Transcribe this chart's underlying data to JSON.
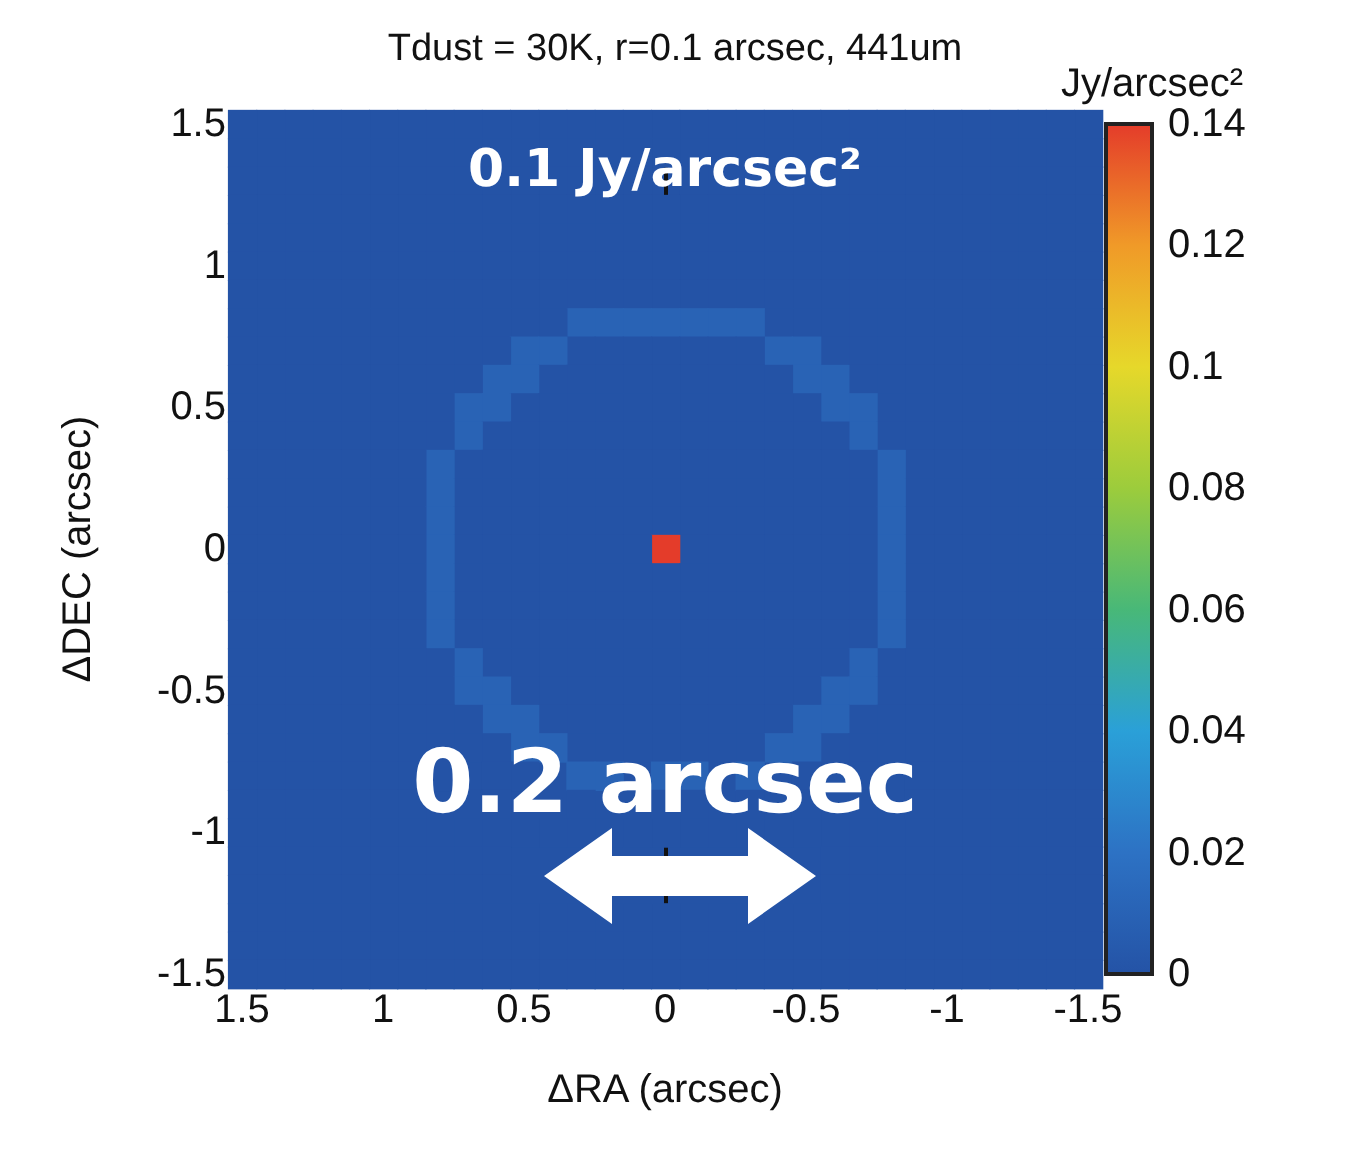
{
  "chart_data": {
    "type": "heatmap",
    "title": "Tdust = 30K, r=0.1 arcsec, 441um",
    "xlabel": "ΔRA (arcsec)",
    "ylabel": "ΔDEC (arcsec)",
    "clabel": "Jy/arcsec²",
    "annotations": [
      "0.1 Jy/arcsec²",
      "0.2 arcsec"
    ],
    "x": [
      -1.5,
      -1.4,
      -1.3,
      -1.2,
      -1.1,
      -1,
      -0.9,
      -0.8,
      -0.7,
      -0.6,
      -0.5,
      -0.4,
      -0.3,
      -0.2,
      -0.1,
      0,
      0.1,
      0.2,
      0.3,
      0.4,
      0.5,
      0.6,
      0.7,
      0.8,
      0.9,
      1,
      1.1,
      1.2,
      1.3,
      1.4,
      1.5
    ],
    "y": [
      1.5,
      1.4,
      1.3,
      1.2,
      1.1,
      1,
      0.9,
      0.8,
      0.7,
      0.6,
      0.5,
      0.4,
      0.3,
      0.2,
      0.1,
      0,
      -0.1,
      -0.2,
      -0.3,
      -0.4,
      -0.5,
      -0.6,
      -0.7,
      -0.8,
      -0.9,
      -1,
      -1.1,
      -1.2,
      -1.3,
      -1.4,
      -1.5
    ],
    "cells": [
      [
        0,
        0,
        0,
        0,
        0,
        0,
        0,
        0,
        0,
        0,
        0,
        0,
        0,
        0,
        0,
        0,
        0,
        0,
        0,
        0,
        0,
        0,
        0,
        0,
        0,
        0,
        0,
        0,
        0,
        0,
        0
      ],
      [
        0,
        0,
        0,
        0,
        0,
        0,
        0,
        0,
        0,
        0,
        0,
        0,
        0,
        0,
        0,
        0,
        0,
        0,
        0,
        0,
        0,
        0,
        0,
        0,
        0,
        0,
        0,
        0,
        0,
        0,
        0
      ],
      [
        0,
        0,
        0,
        0,
        0,
        0,
        0,
        0,
        0,
        0,
        0,
        0,
        0,
        0,
        0,
        null,
        0,
        0,
        0,
        0,
        0,
        0,
        0,
        0,
        0,
        0,
        0,
        0,
        0,
        0,
        0
      ],
      [
        0,
        0,
        0,
        0,
        0,
        0,
        0,
        0,
        0,
        0,
        0,
        0,
        0,
        0,
        0,
        0,
        0,
        0,
        0,
        0,
        0,
        0,
        0,
        0,
        0,
        0,
        0,
        0,
        0,
        0,
        0
      ],
      [
        0,
        0,
        0,
        0,
        0,
        0,
        0,
        0,
        0,
        0,
        0,
        0,
        0,
        0,
        0,
        0,
        0,
        0,
        0,
        0,
        0,
        0,
        0,
        0,
        0,
        0,
        0,
        0,
        0,
        0,
        0
      ],
      [
        0,
        0,
        0,
        0,
        0,
        0,
        0,
        0,
        0,
        0,
        0,
        0,
        0,
        0,
        0,
        0,
        0,
        0,
        0,
        0,
        0,
        0,
        0,
        0,
        0,
        0,
        0,
        0,
        0,
        0,
        0
      ],
      [
        0,
        0,
        0,
        0,
        0,
        0,
        0,
        0,
        0,
        0,
        0,
        0,
        0,
        0,
        0,
        0,
        0,
        0,
        0,
        0,
        0,
        0,
        0,
        0,
        0,
        0,
        0,
        0,
        0,
        0,
        0
      ],
      [
        0,
        0,
        0,
        0,
        0,
        0,
        0,
        0,
        0,
        0,
        0,
        0,
        0.01,
        0.01,
        0.01,
        0.01,
        0.01,
        0.01,
        0.01,
        0,
        0,
        0,
        0,
        0,
        0,
        0,
        0,
        0,
        0,
        0,
        0
      ],
      [
        0,
        0,
        0,
        0,
        0,
        0,
        0,
        0,
        0,
        0,
        0.01,
        0.01,
        0,
        0,
        0,
        0,
        0,
        0,
        0,
        0.01,
        0.01,
        0,
        0,
        0,
        0,
        0,
        0,
        0,
        0,
        0,
        0
      ],
      [
        0,
        0,
        0,
        0,
        0,
        0,
        0,
        0,
        0,
        0.01,
        0.01,
        0,
        0,
        0,
        0,
        0,
        0,
        0,
        0,
        0,
        0.01,
        0.01,
        0,
        0,
        0,
        0,
        0,
        0,
        0,
        0,
        0
      ],
      [
        0,
        0,
        0,
        0,
        0,
        0,
        0,
        0,
        0.01,
        0.01,
        0,
        0,
        0,
        0,
        0,
        0,
        0,
        0,
        0,
        0,
        0,
        0.01,
        0.01,
        0,
        0,
        0,
        0,
        0,
        0,
        0,
        0
      ],
      [
        0,
        0,
        0,
        0,
        0,
        0,
        0,
        0,
        0.01,
        0,
        0,
        0,
        0,
        0,
        0,
        0,
        0,
        0,
        0,
        0,
        0,
        0,
        0.01,
        0,
        0,
        0,
        0,
        0,
        0,
        0,
        0
      ],
      [
        0,
        0,
        0,
        0,
        0,
        0,
        0,
        0.01,
        0,
        0,
        0,
        0,
        0,
        0,
        0,
        0,
        0,
        0,
        0,
        0,
        0,
        0,
        0,
        0.01,
        0,
        0,
        0,
        0,
        0,
        0,
        0
      ],
      [
        0,
        0,
        0,
        0,
        0,
        0,
        0,
        0.01,
        0,
        0,
        0,
        0,
        0,
        0,
        0,
        0,
        0,
        0,
        0,
        0,
        0,
        0,
        0,
        0.01,
        0,
        0,
        0,
        0,
        0,
        0,
        0
      ],
      [
        0,
        0,
        0,
        0,
        0,
        0,
        0,
        0.01,
        0,
        0,
        0,
        0,
        0,
        0,
        0,
        0,
        0,
        0,
        0,
        0,
        0,
        0,
        0,
        0.01,
        0,
        0,
        0,
        0,
        0,
        0,
        0
      ],
      [
        0,
        0,
        0,
        0,
        0,
        0,
        0,
        0.01,
        0,
        0,
        0,
        0,
        0,
        0,
        0,
        0.14,
        0,
        0,
        0,
        0,
        0,
        0,
        0,
        0.01,
        0,
        0,
        0,
        0,
        0,
        0,
        0
      ],
      [
        0,
        0,
        0,
        0,
        0,
        0,
        0,
        0.01,
        0,
        0,
        0,
        0,
        0,
        0,
        0,
        0,
        0,
        0,
        0,
        0,
        0,
        0,
        0,
        0.01,
        0,
        0,
        0,
        0,
        0,
        0,
        0
      ],
      [
        0,
        0,
        0,
        0,
        0,
        0,
        0,
        0.01,
        0,
        0,
        0,
        0,
        0,
        0,
        0,
        0,
        0,
        0,
        0,
        0,
        0,
        0,
        0,
        0.01,
        0,
        0,
        0,
        0,
        0,
        0,
        0
      ],
      [
        0,
        0,
        0,
        0,
        0,
        0,
        0,
        0.01,
        0,
        0,
        0,
        0,
        0,
        0,
        0,
        0,
        0,
        0,
        0,
        0,
        0,
        0,
        0,
        0.01,
        0,
        0,
        0,
        0,
        0,
        0,
        0
      ],
      [
        0,
        0,
        0,
        0,
        0,
        0,
        0,
        0,
        0.01,
        0,
        0,
        0,
        0,
        0,
        0,
        0,
        0,
        0,
        0,
        0,
        0,
        0,
        0.01,
        0,
        0,
        0,
        0,
        0,
        0,
        0,
        0
      ],
      [
        0,
        0,
        0,
        0,
        0,
        0,
        0,
        0,
        0.01,
        0.01,
        0,
        0,
        0,
        0,
        0,
        0,
        0,
        0,
        0,
        0,
        0,
        0.01,
        0.01,
        0,
        0,
        0,
        0,
        0,
        0,
        0,
        0
      ],
      [
        0,
        0,
        0,
        0,
        0,
        0,
        0,
        0,
        0,
        0.01,
        0.01,
        0,
        0,
        0,
        0,
        0,
        0,
        0,
        0,
        0,
        0.01,
        0.01,
        0,
        0,
        0,
        0,
        0,
        0,
        0,
        0,
        0
      ],
      [
        0,
        0,
        0,
        0,
        0,
        0,
        0,
        0,
        0,
        0,
        0.01,
        0.01,
        0,
        0,
        0,
        0,
        0,
        0,
        0,
        0.01,
        0.01,
        0,
        0,
        0,
        0,
        0,
        0,
        0,
        0,
        0,
        0
      ],
      [
        0,
        0,
        0,
        0,
        0,
        0,
        0,
        null,
        0,
        null,
        0,
        null,
        0.01,
        null,
        0.01,
        0.01,
        null,
        0.01,
        0.01,
        null,
        0,
        0,
        null,
        0,
        0,
        0,
        0,
        0,
        0,
        0,
        0
      ],
      [
        0,
        0,
        0,
        0,
        0,
        0,
        0,
        null,
        0,
        null,
        0,
        null,
        0,
        null,
        0,
        0,
        null,
        null,
        0,
        null,
        null,
        0,
        0,
        null,
        0,
        0,
        0,
        0,
        0,
        0,
        0
      ],
      [
        0,
        0,
        0,
        0,
        0,
        0,
        0,
        0,
        0,
        0,
        0,
        0,
        0,
        0,
        0,
        0,
        0,
        0,
        0,
        0,
        0,
        0,
        0,
        0,
        0,
        0,
        0,
        0,
        0,
        0,
        0
      ],
      [
        0,
        0,
        0,
        0,
        0,
        0,
        0,
        0,
        0,
        0,
        null,
        null,
        null,
        null,
        null,
        null,
        null,
        null,
        null,
        null,
        null,
        0,
        0,
        0,
        0,
        0,
        0,
        0,
        0,
        0,
        0
      ],
      [
        0,
        0,
        0,
        0,
        0,
        0,
        0,
        0,
        0,
        0,
        null,
        null,
        null,
        null,
        null,
        null,
        null,
        null,
        null,
        null,
        null,
        0,
        0,
        0,
        0,
        0,
        0,
        0,
        0,
        0,
        0
      ],
      [
        0,
        0,
        0,
        0,
        0,
        0,
        0,
        0,
        0,
        0,
        0,
        0,
        0,
        0,
        0,
        0,
        0,
        0,
        0,
        0,
        0,
        0,
        0,
        0,
        0,
        0,
        0,
        0,
        0,
        0,
        0
      ],
      [
        0,
        0,
        0,
        0,
        0,
        0,
        0,
        0,
        0,
        0,
        0,
        0,
        0,
        0,
        0,
        0,
        0,
        0,
        0,
        0,
        0,
        0,
        0,
        0,
        0,
        0,
        0,
        0,
        0,
        0,
        0
      ],
      [
        0,
        0,
        0,
        0,
        0,
        0,
        0,
        0,
        0,
        0,
        0,
        0,
        0,
        0,
        0,
        0,
        0,
        0,
        0,
        0,
        0,
        0,
        0,
        0,
        0,
        0,
        0,
        0,
        0,
        0,
        0
      ]
    ],
    "xlim": [
      1.5,
      -1.5
    ],
    "xticks": [
      1.5,
      1,
      0.5,
      0,
      -0.5,
      -1,
      -1.5
    ],
    "ylim": [
      -1.5,
      1.5
    ],
    "yticks": [
      -1.5,
      -1,
      -0.5,
      0,
      0.5,
      1,
      1.5
    ],
    "clim": [
      0,
      0.14
    ],
    "cticks": [
      0,
      0.02,
      0.04,
      0.06,
      0.08,
      0.1,
      0.12,
      0.14
    ]
  }
}
